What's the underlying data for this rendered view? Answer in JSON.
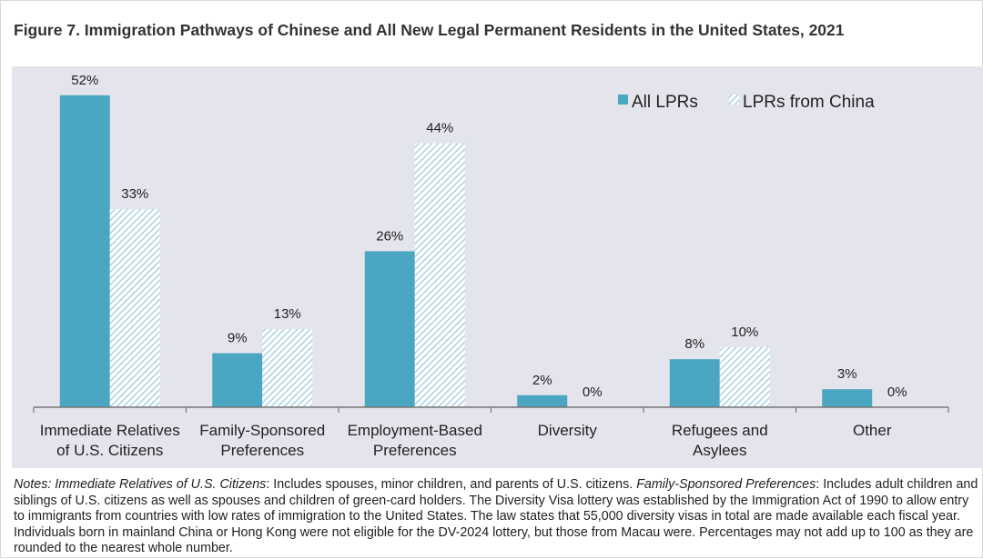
{
  "title": "Figure 7. Immigration Pathways of Chinese and All New Legal Permanent Residents in the United States, 2021",
  "colors": {
    "all_lprs": "#4aa6c1",
    "china_stripe": "#9ccbe0",
    "china_bg": "#ffffff",
    "plot_bg": "#e4e4ed",
    "axis": "#777777"
  },
  "chart_data": {
    "type": "bar",
    "title": "Figure 7. Immigration Pathways of Chinese and All New Legal Permanent Residents in the United States, 2021",
    "xlabel": "",
    "ylabel": "",
    "ylim": [
      0,
      55
    ],
    "grid": false,
    "legend_position": "top-right",
    "categories": [
      [
        "Immediate Relatives",
        "of U.S. Citizens"
      ],
      [
        "Family-Sponsored",
        "Preferences"
      ],
      [
        "Employment-Based",
        "Preferences"
      ],
      [
        "Diversity"
      ],
      [
        "Refugees and",
        "Asylees"
      ],
      [
        "Other"
      ]
    ],
    "series": [
      {
        "name": "All LPRs",
        "values": [
          52,
          9,
          26,
          2,
          8,
          3
        ],
        "labels": [
          "52%",
          "9%",
          "26%",
          "2%",
          "8%",
          "3%"
        ]
      },
      {
        "name": "LPRs from China",
        "values": [
          33,
          13,
          44,
          0,
          10,
          0
        ],
        "labels": [
          "33%",
          "13%",
          "44%",
          "0%",
          "10%",
          "0%"
        ]
      }
    ]
  },
  "notes": {
    "prefix": "Notes: ",
    "term1": "Immediate Relatives of U.S. Citizens",
    "text1": ": Includes spouses, minor children, and parents of U.S. citizens. ",
    "term2": "Family-Sponsored Preferences",
    "text2": ": Includes adult children and siblings of U.S. citizens as well as spouses and children of green-card holders. The Diversity Visa lottery was established by the Immigration Act of 1990 to allow entry to immigrants from countries with low rates of immigration to the United States. The law states that 55,000 diversity visas in total are made available each fiscal year. Individuals born in mainland China or Hong Kong were not eligible for the DV-2024 lottery, but those from Macau were. Percentages may not add up to 100 as they are rounded to the nearest whole number."
  }
}
